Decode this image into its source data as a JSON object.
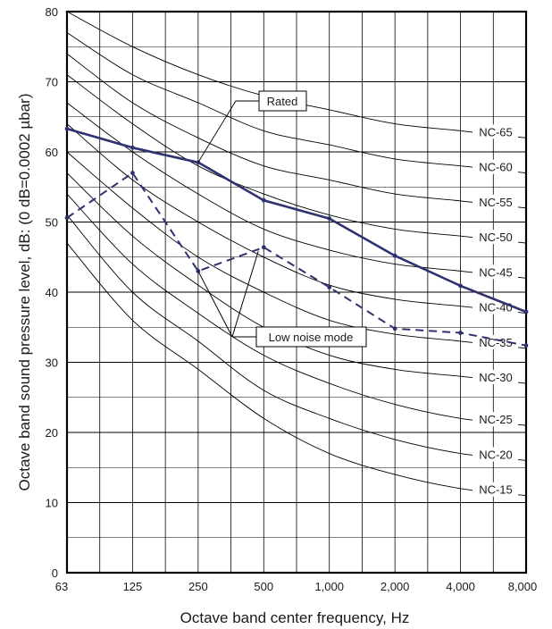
{
  "chart_data": {
    "type": "line",
    "xlabel": "Octave band center frequency, Hz",
    "ylabel": "Octave band sound pressure level, dB: (0 dB=0.0002 µbar)",
    "x_categories": [
      "63",
      "125",
      "250",
      "500",
      "1,000",
      "2,000",
      "4,000",
      "8,000"
    ],
    "yticks": [
      "0",
      "10",
      "20",
      "30",
      "40",
      "50",
      "60",
      "70",
      "80"
    ],
    "ylim": [
      0,
      80
    ],
    "grid": true,
    "nc_curves": [
      {
        "label": "NC-65",
        "values": [
          80,
          75,
          71,
          68,
          66,
          64,
          63,
          62
        ]
      },
      {
        "label": "NC-60",
        "values": [
          77,
          71,
          67,
          63,
          61,
          59,
          58,
          57
        ]
      },
      {
        "label": "NC-55",
        "values": [
          74,
          67,
          62,
          58,
          56,
          54,
          53,
          52
        ]
      },
      {
        "label": "NC-50",
        "values": [
          71,
          64,
          58,
          54,
          51,
          49,
          48,
          47
        ]
      },
      {
        "label": "NC-45",
        "values": [
          67,
          60,
          54,
          49,
          46,
          44,
          43,
          42
        ]
      },
      {
        "label": "NC-40",
        "values": [
          64,
          56,
          50,
          45,
          41,
          39,
          38,
          37
        ]
      },
      {
        "label": "NC-35",
        "values": [
          60,
          52,
          45,
          40,
          36,
          34,
          33,
          32
        ]
      },
      {
        "label": "NC-30",
        "values": [
          57,
          48,
          41,
          35,
          31,
          29,
          28,
          27
        ]
      },
      {
        "label": "NC-25",
        "values": [
          54,
          44,
          37,
          31,
          27,
          24,
          22,
          21
        ]
      },
      {
        "label": "NC-20",
        "values": [
          51,
          40,
          33,
          26,
          22,
          19,
          17,
          16
        ]
      },
      {
        "label": "NC-15",
        "values": [
          47,
          36,
          29,
          22,
          17,
          14,
          12,
          11
        ]
      }
    ],
    "series": [
      {
        "name": "Rated",
        "style": "solid",
        "values": [
          63.3,
          60.6,
          58.5,
          53.1,
          50.5,
          45.2,
          40.9,
          37.2
        ]
      },
      {
        "name": "Low noise mode",
        "style": "dashed",
        "values": [
          50.6,
          57.0,
          43.0,
          46.4,
          40.7,
          34.8,
          34.2,
          32.4
        ]
      }
    ],
    "annotations": [
      "Rated",
      "Low noise mode"
    ],
    "colors": {
      "series": "#2e3270",
      "nc_curve": "#000000",
      "grid": "#000000"
    }
  }
}
